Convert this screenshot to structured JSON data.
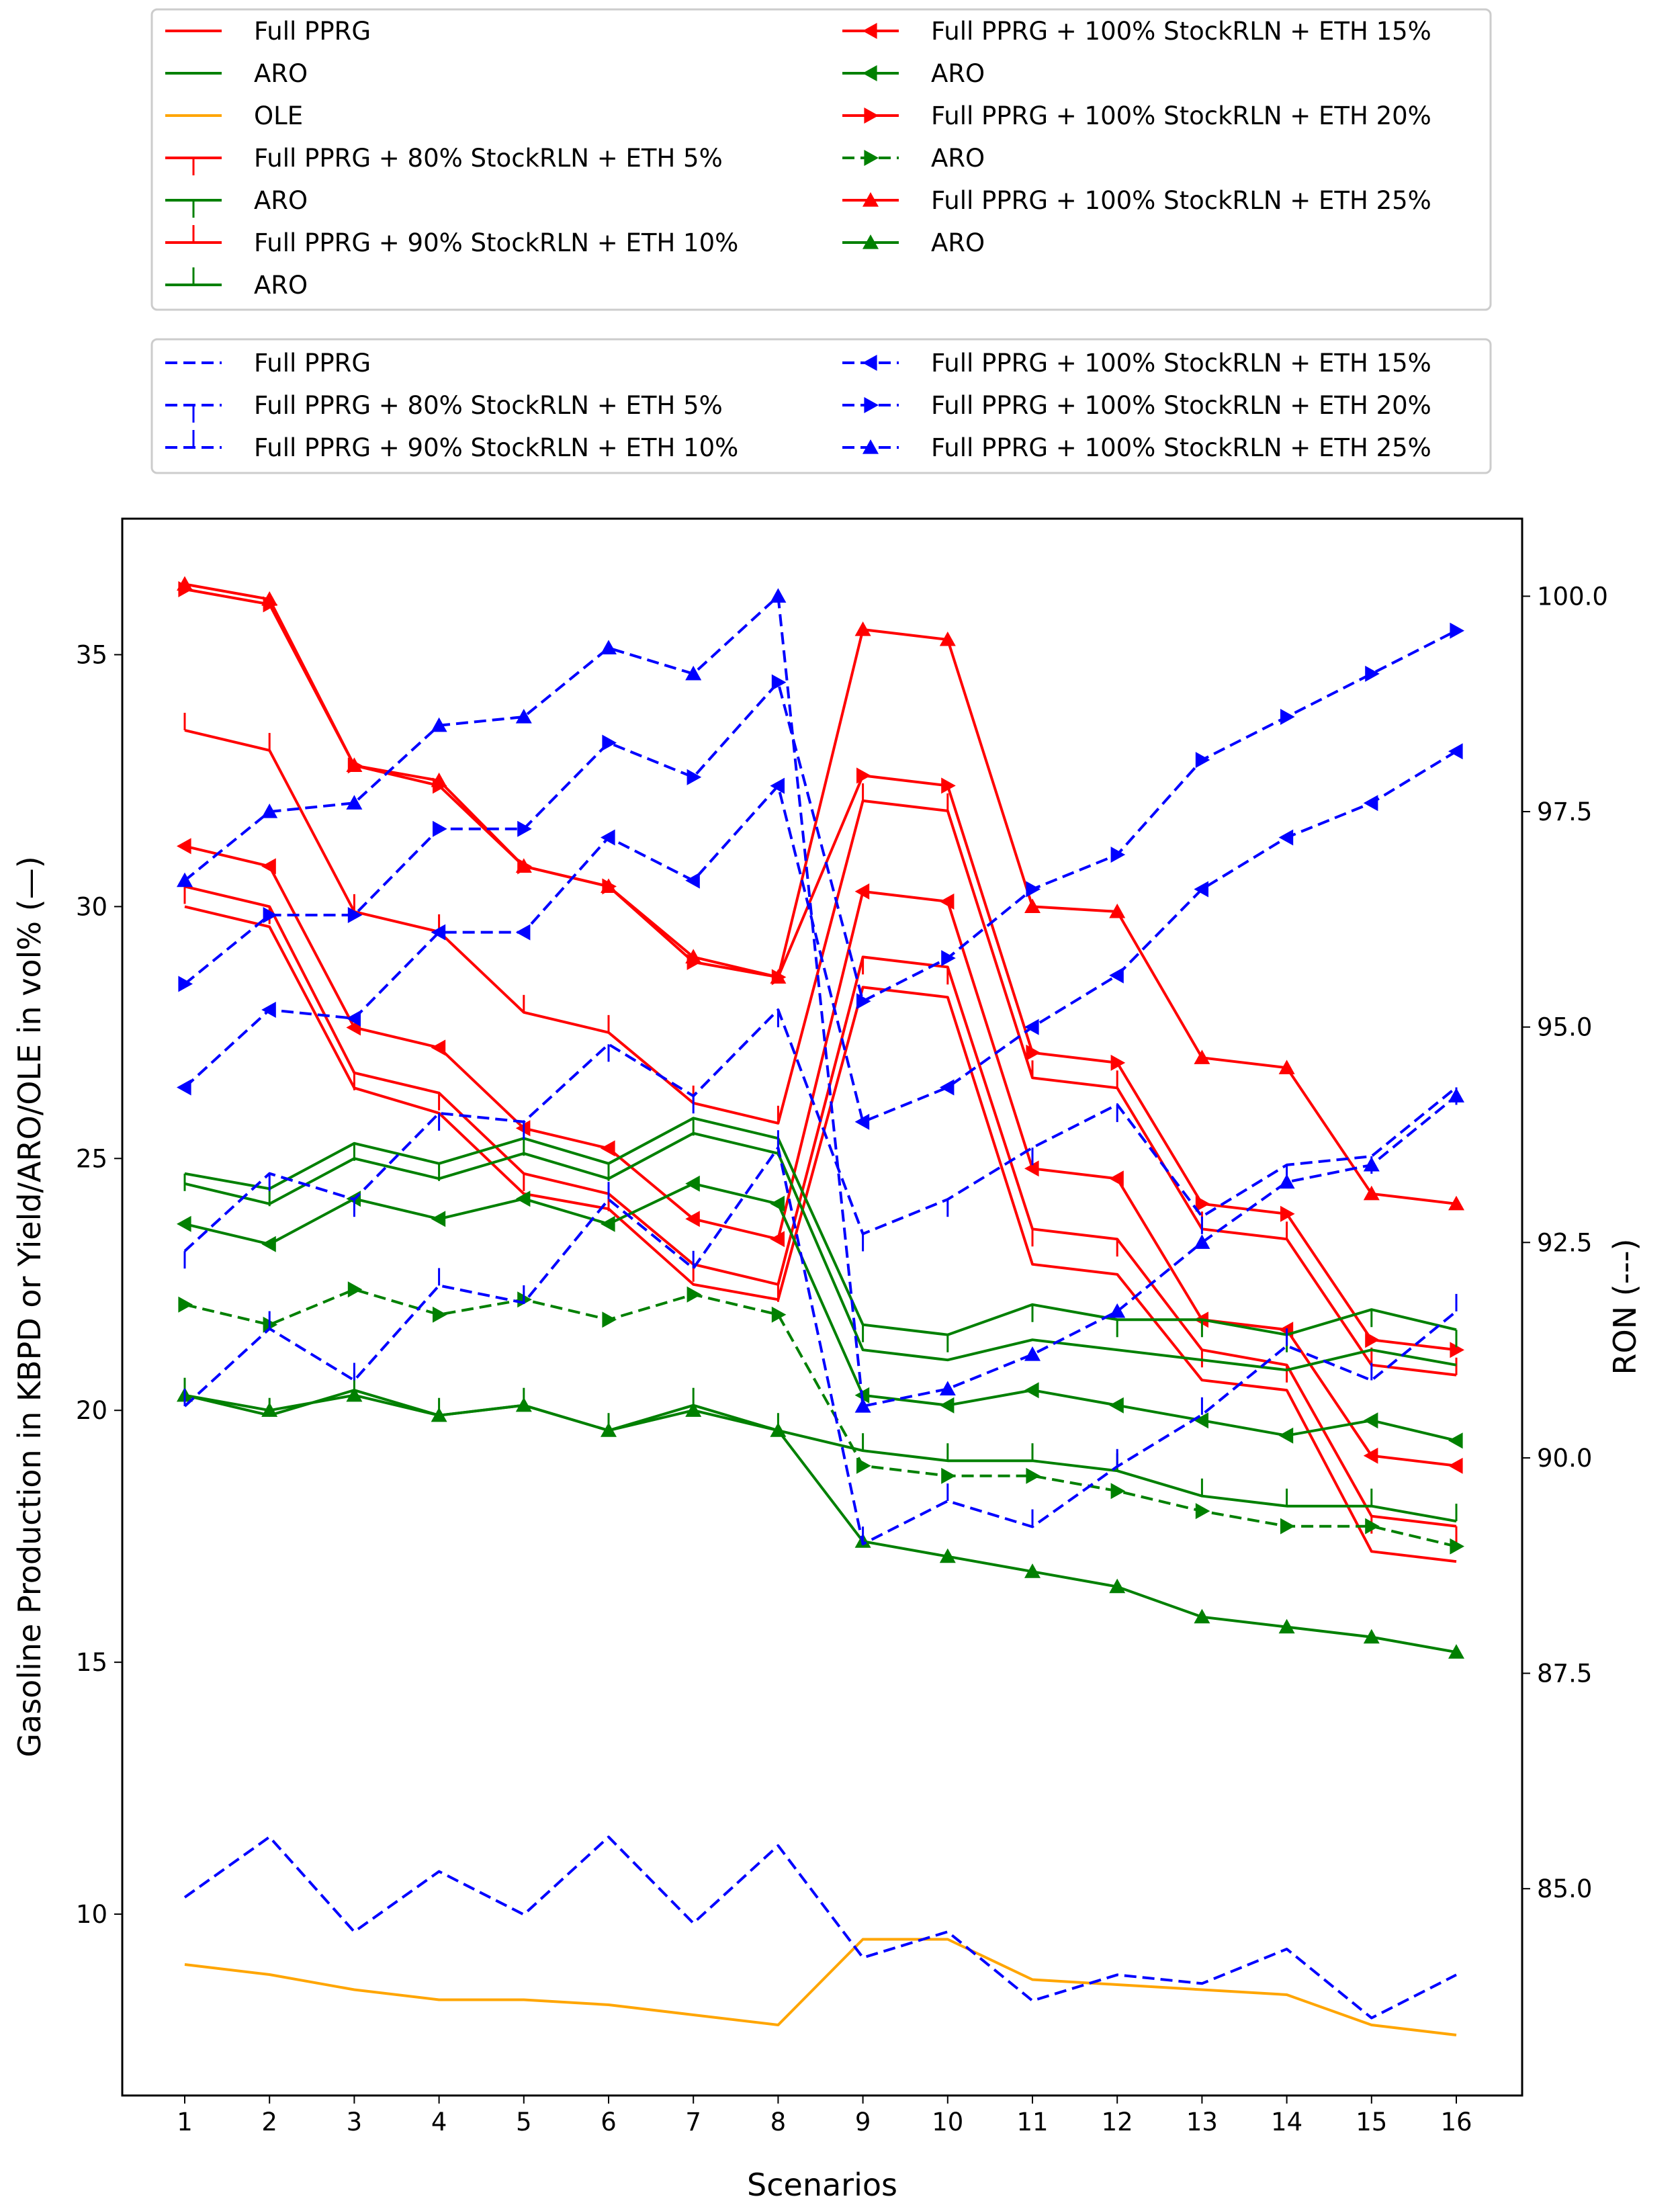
{
  "chart_data": {
    "type": "line",
    "xlabel": "Scenarios",
    "ylabel": "Gasoline Production in KBPD or Yield/ARO/OLE in vol% (—)",
    "y2label": "RON (---)",
    "categories": [
      1,
      2,
      3,
      4,
      5,
      6,
      7,
      8,
      9,
      10,
      11,
      12,
      13,
      14,
      15,
      16
    ],
    "xticks": [
      "1",
      "2",
      "3",
      "4",
      "5",
      "6",
      "7",
      "8",
      "9",
      "10",
      "11",
      "12",
      "13",
      "14",
      "15",
      "16"
    ],
    "ylim": [
      6.4,
      37.7
    ],
    "y2lim": [
      82.6,
      100.9
    ],
    "yticks": [
      "10",
      "15",
      "20",
      "25",
      "30",
      "35"
    ],
    "y2ticks": [
      "85.0",
      "87.5",
      "90.0",
      "92.5",
      "95.0",
      "97.5",
      "100.0"
    ],
    "colors": {
      "red": "#ff0000",
      "green": "#008000",
      "orange": "#ffa500",
      "blue": "#0000ff"
    },
    "legend_top_left": [
      {
        "label": "Full PPRG",
        "color": "#ff0000",
        "style": "solid",
        "marker": "none"
      },
      {
        "label": "ARO",
        "color": "#008000",
        "style": "solid",
        "marker": "none"
      },
      {
        "label": "OLE",
        "color": "#ffa500",
        "style": "solid",
        "marker": "none"
      },
      {
        "label": "Full PPRG + 80% StockRLN + ETH 5%",
        "color": "#ff0000",
        "style": "solid",
        "marker": "tickdown"
      },
      {
        "label": "ARO",
        "color": "#008000",
        "style": "solid",
        "marker": "tickdown"
      },
      {
        "label": "Full PPRG + 90% StockRLN + ETH 10%",
        "color": "#ff0000",
        "style": "solid",
        "marker": "tickup"
      },
      {
        "label": "ARO",
        "color": "#008000",
        "style": "solid",
        "marker": "tickup"
      }
    ],
    "legend_top_right": [
      {
        "label": "Full PPRG + 100% StockRLN + ETH 15%",
        "color": "#ff0000",
        "style": "solid",
        "marker": "triangle-left"
      },
      {
        "label": "ARO",
        "color": "#008000",
        "style": "solid",
        "marker": "triangle-left"
      },
      {
        "label": "Full PPRG + 100% StockRLN + ETH 20%",
        "color": "#ff0000",
        "style": "solid",
        "marker": "triangle-right"
      },
      {
        "label": "ARO",
        "color": "#008000",
        "style": "dashed",
        "marker": "triangle-right"
      },
      {
        "label": "Full PPRG + 100% StockRLN + ETH 25%",
        "color": "#ff0000",
        "style": "solid",
        "marker": "triangle-up"
      },
      {
        "label": "ARO",
        "color": "#008000",
        "style": "solid",
        "marker": "triangle-up"
      }
    ],
    "legend_bottom_left": [
      {
        "label": "Full PPRG",
        "color": "#0000ff",
        "style": "dashed",
        "marker": "none"
      },
      {
        "label": "Full PPRG + 80% StockRLN + ETH 5%",
        "color": "#0000ff",
        "style": "dashed",
        "marker": "tickdown"
      },
      {
        "label": "Full PPRG + 90% StockRLN + ETH 10%",
        "color": "#0000ff",
        "style": "dashed",
        "marker": "tickup"
      }
    ],
    "legend_bottom_right": [
      {
        "label": "Full PPRG + 100% StockRLN + ETH 15%",
        "color": "#0000ff",
        "style": "dashed",
        "marker": "triangle-left"
      },
      {
        "label": "Full PPRG + 100% StockRLN + ETH 20%",
        "color": "#0000ff",
        "style": "dashed",
        "marker": "triangle-right"
      },
      {
        "label": "Full PPRG + 100% StockRLN + ETH 25%",
        "color": "#0000ff",
        "style": "dashed",
        "marker": "triangle-up"
      }
    ],
    "series": [
      {
        "name": "Full PPRG",
        "axis": "left",
        "color": "#ff0000",
        "style": "solid",
        "marker": "none",
        "values": [
          30.0,
          29.6,
          26.4,
          25.9,
          24.3,
          24.0,
          22.5,
          22.2,
          28.4,
          28.2,
          22.9,
          22.7,
          20.6,
          20.4,
          17.2,
          17.0
        ]
      },
      {
        "name": "Full PPRG + 80% StockRLN + ETH 5%",
        "axis": "left",
        "color": "#ff0000",
        "style": "solid",
        "marker": "tickdown",
        "values": [
          30.4,
          30.0,
          26.7,
          26.3,
          24.7,
          24.3,
          22.9,
          22.5,
          29.0,
          28.8,
          23.6,
          23.4,
          21.2,
          20.9,
          17.9,
          17.7
        ]
      },
      {
        "name": "Full PPRG + 90% StockRLN + ETH 10%",
        "axis": "left",
        "color": "#ff0000",
        "style": "solid",
        "marker": "tickup",
        "values": [
          33.5,
          33.1,
          29.9,
          29.5,
          27.9,
          27.5,
          26.1,
          25.7,
          32.1,
          31.9,
          26.6,
          26.4,
          23.6,
          23.4,
          20.9,
          20.7
        ]
      },
      {
        "name": "Full PPRG + 100% StockRLN + ETH 15%",
        "axis": "left",
        "color": "#ff0000",
        "style": "solid",
        "marker": "triangle-left",
        "values": [
          31.2,
          30.8,
          27.6,
          27.2,
          25.6,
          25.2,
          23.8,
          23.4,
          30.3,
          30.1,
          24.8,
          24.6,
          21.8,
          21.6,
          19.1,
          18.9
        ]
      },
      {
        "name": "Full PPRG + 100% StockRLN + ETH 20%",
        "axis": "left",
        "color": "#ff0000",
        "style": "solid",
        "marker": "triangle-right",
        "values": [
          36.3,
          36.0,
          32.8,
          32.4,
          30.8,
          30.4,
          28.9,
          28.6,
          32.6,
          32.4,
          27.1,
          26.9,
          24.1,
          23.9,
          21.4,
          21.2
        ]
      },
      {
        "name": "Full PPRG + 100% StockRLN + ETH 25%",
        "axis": "left",
        "color": "#ff0000",
        "style": "solid",
        "marker": "triangle-up",
        "values": [
          36.4,
          36.1,
          32.8,
          32.5,
          30.8,
          30.4,
          29.0,
          28.6,
          35.5,
          35.3,
          30.0,
          29.9,
          27.0,
          26.8,
          24.3,
          24.1
        ]
      },
      {
        "name": "ARO",
        "axis": "left",
        "color": "#008000",
        "style": "solid",
        "marker": "none",
        "values": [
          24.5,
          24.1,
          25.0,
          24.6,
          25.1,
          24.6,
          25.5,
          25.1,
          21.2,
          21.0,
          21.4,
          21.2,
          21.0,
          20.8,
          21.2,
          20.9
        ]
      },
      {
        "name": "ARO (80% StockRLN + ETH 5%)",
        "axis": "left",
        "color": "#008000",
        "style": "solid",
        "marker": "tickdown",
        "values": [
          24.7,
          24.4,
          25.3,
          24.9,
          25.4,
          24.9,
          25.8,
          25.4,
          21.7,
          21.5,
          22.1,
          21.8,
          21.8,
          21.5,
          22.0,
          21.6
        ]
      },
      {
        "name": "ARO (90% StockRLN + ETH 10%)",
        "axis": "left",
        "color": "#008000",
        "style": "solid",
        "marker": "tickup",
        "values": [
          20.3,
          19.9,
          20.4,
          19.9,
          20.1,
          19.6,
          20.1,
          19.6,
          19.2,
          19.0,
          19.0,
          18.8,
          18.3,
          18.1,
          18.1,
          17.8
        ]
      },
      {
        "name": "ARO (100% StockRLN + ETH 15%)",
        "axis": "left",
        "color": "#008000",
        "style": "solid",
        "marker": "triangle-left",
        "values": [
          23.7,
          23.3,
          24.2,
          23.8,
          24.2,
          23.7,
          24.5,
          24.1,
          20.3,
          20.1,
          20.4,
          20.1,
          19.8,
          19.5,
          19.8,
          19.4
        ]
      },
      {
        "name": "ARO (100% StockRLN + ETH 20%)",
        "axis": "left",
        "color": "#008000",
        "style": "dashed",
        "marker": "triangle-right",
        "values": [
          22.1,
          21.7,
          22.4,
          21.9,
          22.2,
          21.8,
          22.3,
          21.9,
          18.9,
          18.7,
          18.7,
          18.4,
          18.0,
          17.7,
          17.7,
          17.3
        ]
      },
      {
        "name": "ARO (100% StockRLN + ETH 25%)",
        "axis": "left",
        "color": "#008000",
        "style": "solid",
        "marker": "triangle-up",
        "values": [
          20.3,
          20.0,
          20.3,
          19.9,
          20.1,
          19.6,
          20.0,
          19.6,
          17.4,
          17.1,
          16.8,
          16.5,
          15.9,
          15.7,
          15.5,
          15.2
        ]
      },
      {
        "name": "OLE",
        "axis": "left",
        "color": "#ffa500",
        "style": "solid",
        "marker": "none",
        "values": [
          9.0,
          8.8,
          8.5,
          8.3,
          8.3,
          8.2,
          8.0,
          7.8,
          9.5,
          9.5,
          8.7,
          8.6,
          8.5,
          8.4,
          7.8,
          7.6
        ]
      },
      {
        "name": "RON Full PPRG",
        "axis": "right",
        "color": "#0000ff",
        "style": "dashed",
        "marker": "none",
        "values": [
          84.9,
          85.6,
          84.5,
          85.2,
          84.7,
          85.6,
          84.6,
          85.5,
          84.2,
          84.5,
          83.7,
          84.0,
          83.9,
          84.3,
          83.5,
          84.0
        ]
      },
      {
        "name": "RON Full PPRG + 80% StockRLN + ETH 5%",
        "axis": "right",
        "color": "#0000ff",
        "style": "dashed",
        "marker": "tickdown",
        "values": [
          92.4,
          93.3,
          93.0,
          94.0,
          93.9,
          94.8,
          94.2,
          95.2,
          92.6,
          93.0,
          93.6,
          94.1,
          92.8,
          93.4,
          93.5,
          94.3
        ]
      },
      {
        "name": "RON Full PPRG + 90% StockRLN + ETH 10%",
        "axis": "right",
        "color": "#0000ff",
        "style": "dashed",
        "marker": "tickup",
        "values": [
          90.6,
          91.5,
          90.9,
          92.0,
          91.8,
          93.0,
          92.2,
          93.6,
          89.0,
          89.5,
          89.2,
          89.9,
          90.5,
          91.3,
          90.9,
          91.7
        ]
      },
      {
        "name": "RON Full PPRG + 100% StockRLN + ETH 15%",
        "axis": "right",
        "color": "#0000ff",
        "style": "dashed",
        "marker": "triangle-left",
        "values": [
          94.3,
          95.2,
          95.1,
          96.1,
          96.1,
          97.2,
          96.7,
          97.8,
          93.9,
          94.3,
          95.0,
          95.6,
          96.6,
          97.2,
          97.6,
          98.2
        ]
      },
      {
        "name": "RON Full PPRG + 100% StockRLN + ETH 20%",
        "axis": "right",
        "color": "#0000ff",
        "style": "dashed",
        "marker": "triangle-right",
        "values": [
          95.5,
          96.3,
          96.3,
          97.3,
          97.3,
          98.3,
          97.9,
          99.0,
          95.3,
          95.8,
          96.6,
          97.0,
          98.1,
          98.6,
          99.1,
          99.6
        ]
      },
      {
        "name": "RON Full PPRG + 100% StockRLN + ETH 25%",
        "axis": "right",
        "color": "#0000ff",
        "style": "dashed",
        "marker": "triangle-up",
        "values": [
          96.7,
          97.5,
          97.6,
          98.5,
          98.6,
          99.4,
          99.1,
          100.0,
          90.6,
          90.8,
          91.2,
          91.7,
          92.5,
          93.2,
          93.4,
          94.2
        ]
      }
    ]
  }
}
